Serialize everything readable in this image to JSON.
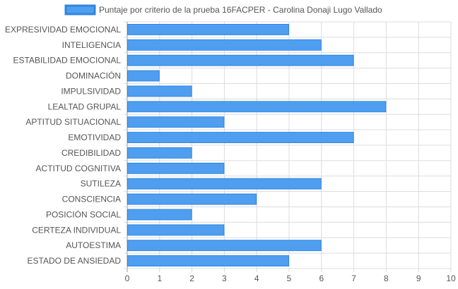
{
  "chart_data": {
    "type": "bar",
    "orientation": "horizontal",
    "legend": {
      "label": "Puntaje por criterio de la prueba 16FACPER - Carolina Donaji Lugo Vallado",
      "placement": "top-center"
    },
    "categories": [
      "EXPRESIVIDAD EMOCIONAL",
      "INTELIGENCIA",
      "ESTABILIDAD EMOCIONAL",
      "DOMINACIÓN",
      "IMPULSIVIDAD",
      "LEALTAD GRUPAL",
      "APTITUD SITUACIONAL",
      "EMOTIVIDAD",
      "CREDIBILIDAD",
      "ACTITUD COGNITIVA",
      "SUTILEZA",
      "CONSCIENCIA",
      "POSICIÓN SOCIAL",
      "CERTEZA INDIVIDUAL",
      "AUTOESTIMA",
      "ESTADO DE ANSIEDAD"
    ],
    "series": [
      {
        "name": "Puntaje por criterio de la prueba 16FACPER - Carolina Donaji Lugo Vallado",
        "values": [
          5,
          6,
          7,
          1,
          2,
          8,
          3,
          7,
          2,
          3,
          6,
          4,
          2,
          3,
          6,
          5
        ]
      }
    ],
    "xlim": [
      0,
      10
    ],
    "xticks": [
      "0",
      "1",
      "2",
      "3",
      "4",
      "5",
      "6",
      "7",
      "8",
      "9",
      "10"
    ],
    "grid": true,
    "colors": {
      "bar_fill": "#4f9ef0",
      "bar_stroke": "#2f86e0",
      "grid": "#dcdcdc",
      "axis": "#999999",
      "text": "#555555"
    }
  }
}
